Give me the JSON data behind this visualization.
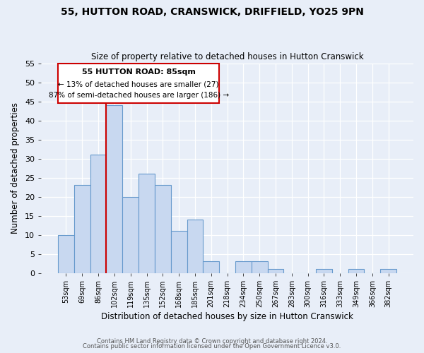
{
  "title1": "55, HUTTON ROAD, CRANSWICK, DRIFFIELD, YO25 9PN",
  "title2": "Size of property relative to detached houses in Hutton Cranswick",
  "xlabel": "Distribution of detached houses by size in Hutton Cranswick",
  "ylabel": "Number of detached properties",
  "bin_labels": [
    "53sqm",
    "69sqm",
    "86sqm",
    "102sqm",
    "119sqm",
    "135sqm",
    "152sqm",
    "168sqm",
    "185sqm",
    "201sqm",
    "218sqm",
    "234sqm",
    "250sqm",
    "267sqm",
    "283sqm",
    "300sqm",
    "316sqm",
    "333sqm",
    "349sqm",
    "366sqm",
    "382sqm"
  ],
  "bar_heights": [
    10,
    23,
    31,
    44,
    20,
    26,
    23,
    11,
    14,
    3,
    0,
    3,
    3,
    1,
    0,
    0,
    1,
    0,
    1,
    0,
    1
  ],
  "bar_color": "#c8d8f0",
  "bar_edge_color": "#6699cc",
  "vline_color": "#cc0000",
  "annotation_title": "55 HUTTON ROAD: 85sqm",
  "annotation_line1": "← 13% of detached houses are smaller (27)",
  "annotation_line2": "87% of semi-detached houses are larger (186) →",
  "annotation_box_color": "#ffffff",
  "annotation_box_edge": "#cc0000",
  "ylim": [
    0,
    55
  ],
  "yticks": [
    0,
    5,
    10,
    15,
    20,
    25,
    30,
    35,
    40,
    45,
    50,
    55
  ],
  "footer1": "Contains HM Land Registry data © Crown copyright and database right 2024.",
  "footer2": "Contains public sector information licensed under the Open Government Licence v3.0.",
  "background_color": "#e8eef8",
  "plot_bg_color": "#e8eef8"
}
